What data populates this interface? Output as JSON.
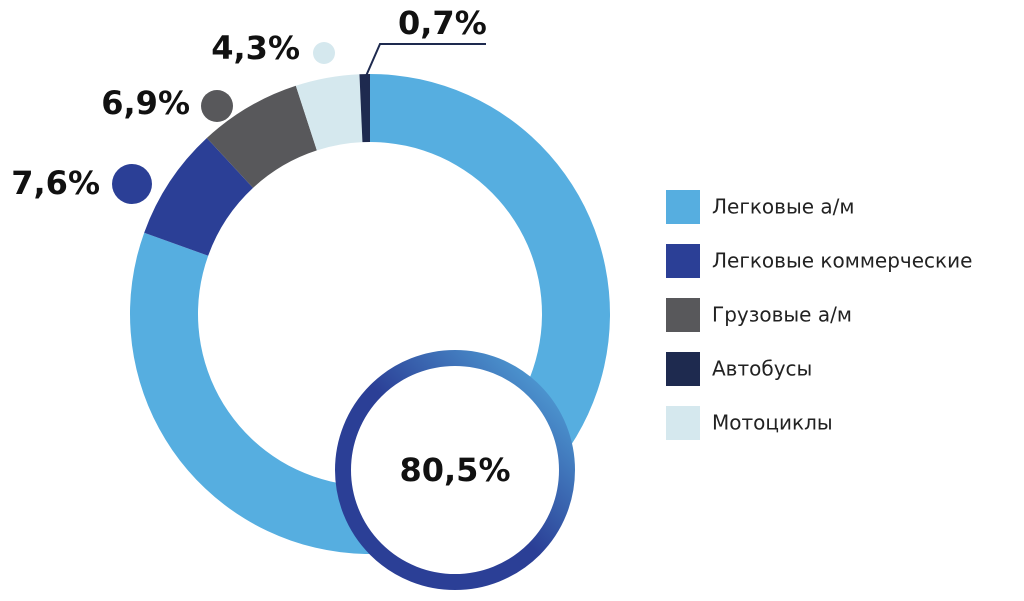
{
  "chart_data": {
    "type": "donut",
    "categories": [
      "Легковые а/м",
      "Легковые коммерческие",
      "Грузовые а/м",
      "Автобусы",
      "Мотоциклы"
    ],
    "values": [
      80.5,
      7.6,
      6.9,
      0.7,
      4.3
    ],
    "value_labels": [
      "80,5%",
      "7,6%",
      "6,9%",
      "0,7%",
      "4,3%"
    ],
    "colors": [
      "#56aee0",
      "#2b3f96",
      "#58585b",
      "#1e2a4f",
      "#d5e8ee"
    ]
  }
}
